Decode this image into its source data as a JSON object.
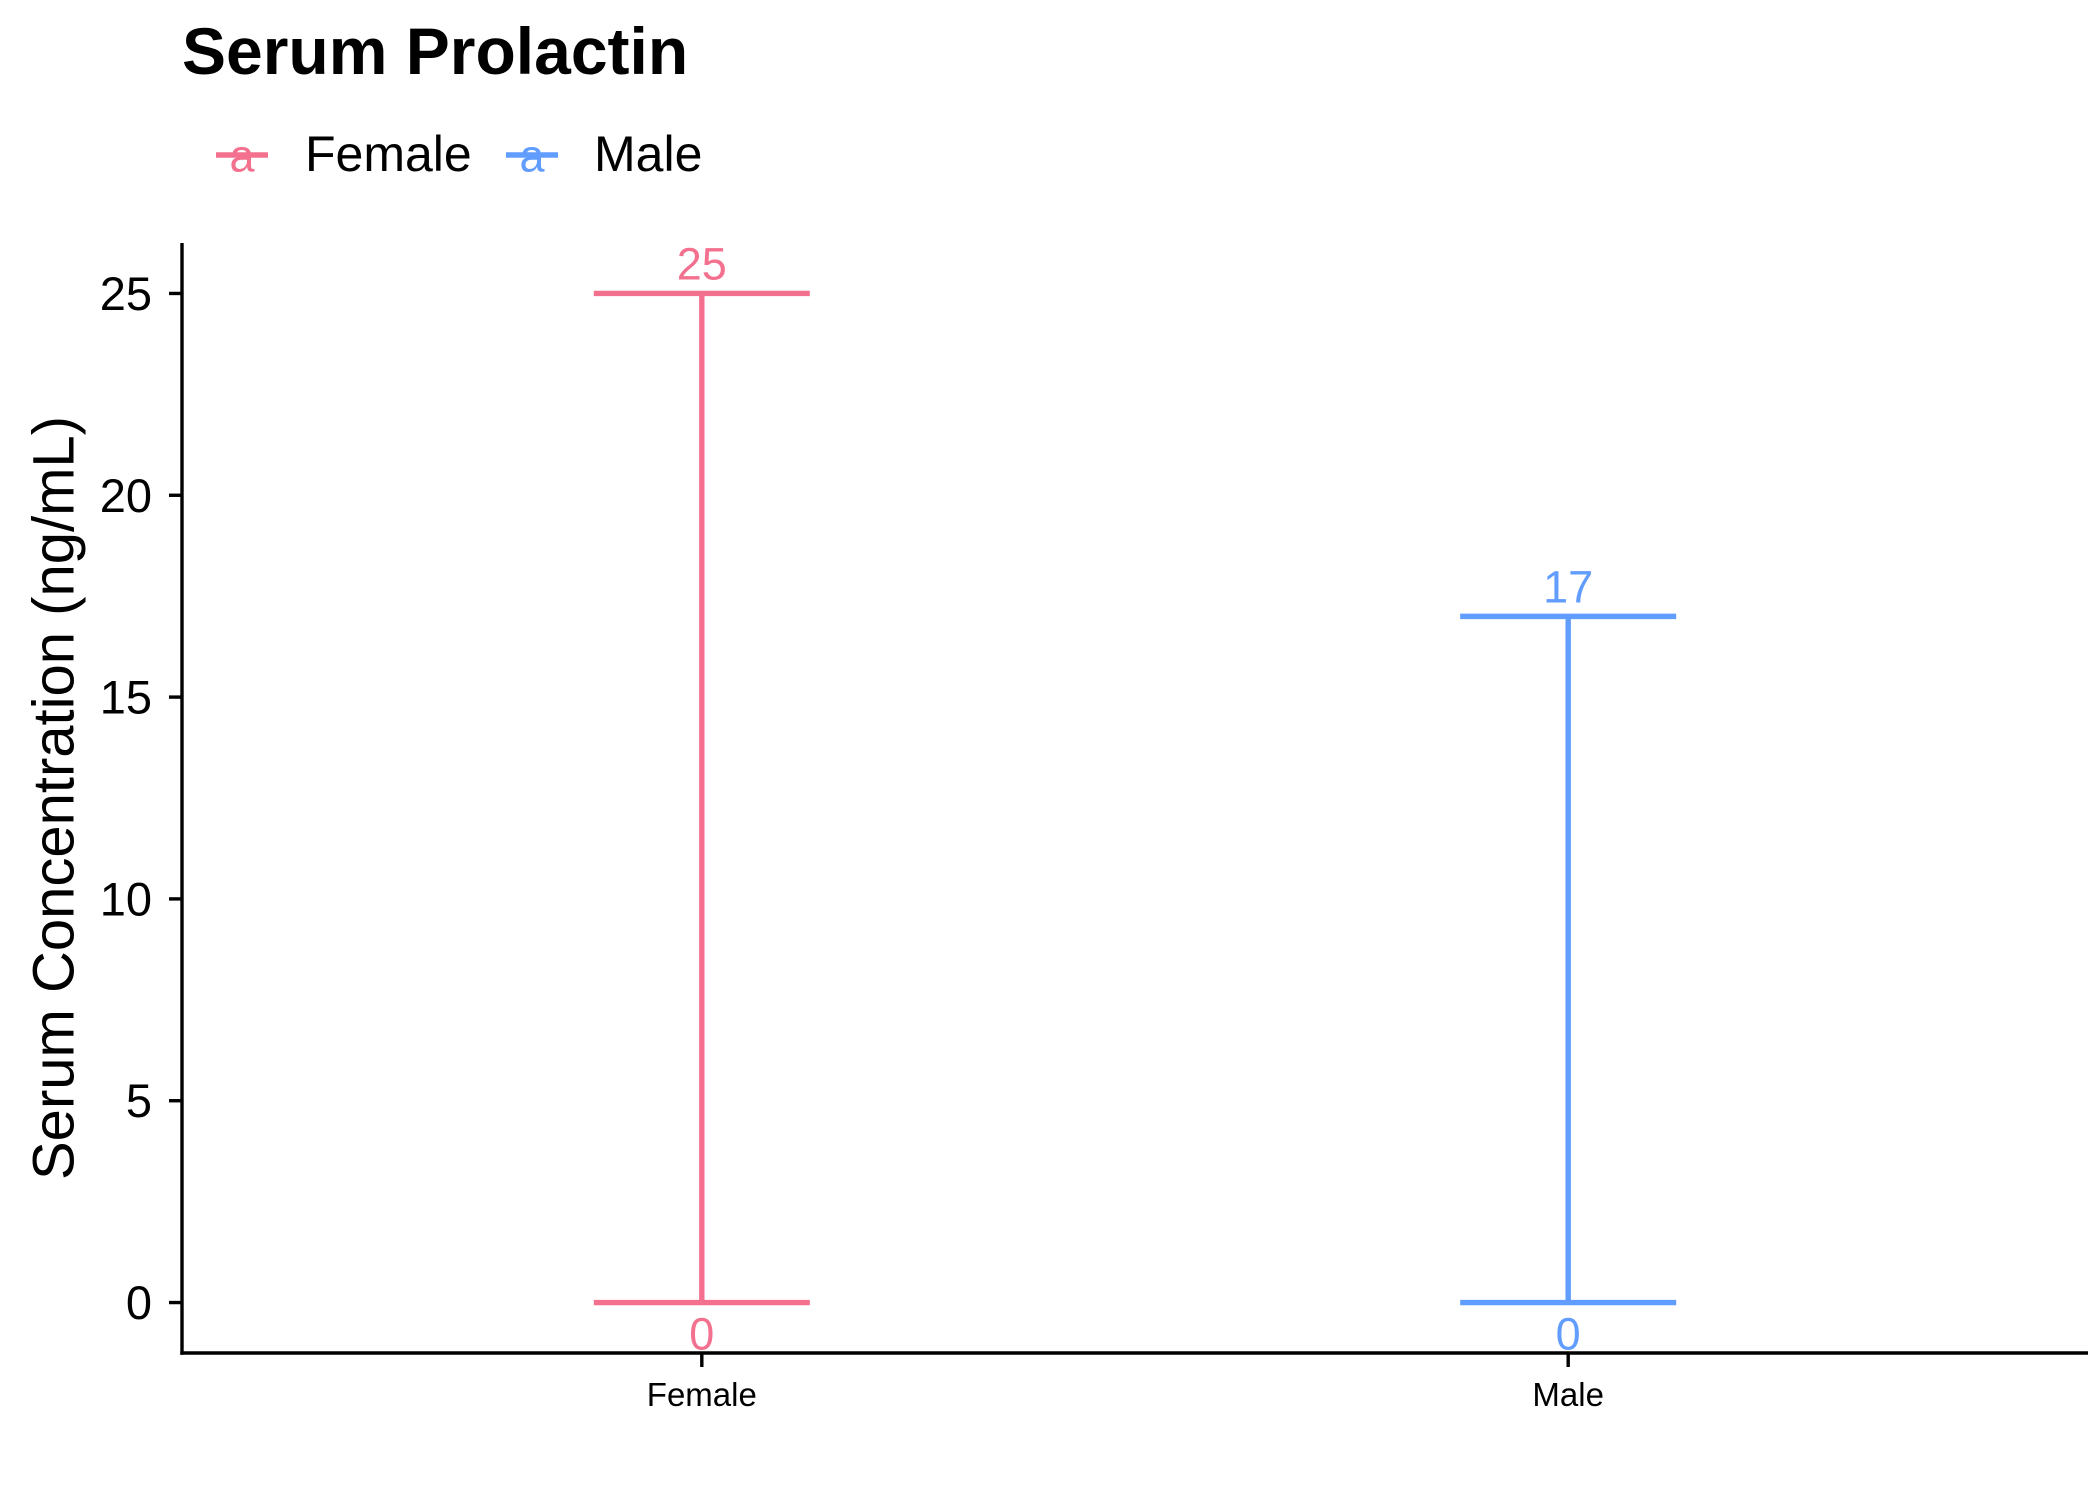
{
  "chart_data": {
    "type": "bar",
    "title": "Serum Prolactin",
    "ylabel": "Serum Concentration (ng/mL)",
    "categories": [
      "Female",
      "Male"
    ],
    "series": [
      {
        "name": "Female",
        "category": "Female",
        "low": 0,
        "high": 25,
        "color": "#F3708F"
      },
      {
        "name": "Male",
        "category": "Male",
        "low": 0,
        "high": 17,
        "color": "#619CFF"
      }
    ],
    "yticks": [
      0,
      5,
      10,
      15,
      20,
      25
    ],
    "ylim": [
      -1.25,
      26.25
    ],
    "grid": false,
    "legend": {
      "position": "top-left",
      "key_glyph": "a"
    }
  }
}
